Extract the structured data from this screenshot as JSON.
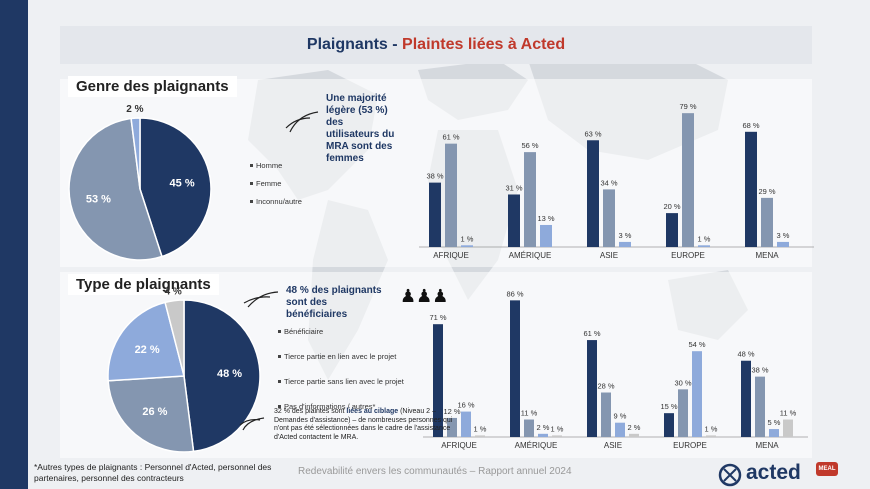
{
  "header": {
    "title_part1": "Plaignants - ",
    "title_part2": "Plaintes liées à Acted"
  },
  "genre": {
    "section_title": "Genre des plaignants",
    "callout": "Une majorité légère (53 %) des utilisateurs du MRA sont des femmes",
    "legend": [
      "Homme",
      "Femme",
      "Inconnu/autre"
    ]
  },
  "type": {
    "section_title": "Type de plaignants",
    "callout": "48 % des plaignants sont des bénéficiaires",
    "legend": [
      "Bénéficiaire",
      "Tierce partie en lien avec le projet",
      "Tierce partie sans lien avec le projet",
      "Pas d'informations / autres*"
    ],
    "note_pre": "32 % des plaintes sont ",
    "note_highlight": "liées au ciblage",
    "note_post": " (Niveau 2 – Demandes d'assistance) – de nombreuses personnes qui n'ont pas été sélectionnées dans le cadre de l'assistance d'Acted contactent le MRA."
  },
  "footnote": "*Autres types de plaignants : Personnel d'Acted, personnel des partenaires, personnel des contracteurs",
  "footer": "Redevabilité envers les communautés – Rapport annuel  2024",
  "brand": {
    "name": "acted",
    "badge": "MEAL"
  },
  "colors": {
    "navy": "#1f3864",
    "slate": "#8496b0",
    "light_blue": "#8eaadb",
    "grey": "#c9c9c9",
    "accent": "#c0392b"
  },
  "chart_data": [
    {
      "type": "pie",
      "slices": [
        {
          "label": "Homme",
          "value": 45,
          "text": "45 %"
        },
        {
          "label": "Femme",
          "value": 53,
          "text": "53 %"
        },
        {
          "label": "Inconnu/autre",
          "value": 2,
          "text": "2 %"
        }
      ]
    },
    {
      "type": "bar",
      "categories": [
        "AFRIQUE",
        "AMÉRIQUE",
        "ASIE",
        "EUROPE",
        "MENA"
      ],
      "series": [
        {
          "name": "Homme",
          "values": [
            38,
            31,
            63,
            20,
            68
          ],
          "labels": [
            "38 %",
            "31 %",
            "63 %",
            "20 %",
            "68 %"
          ]
        },
        {
          "name": "Femme",
          "values": [
            61,
            56,
            34,
            79,
            29
          ],
          "labels": [
            "61 %",
            "56 %",
            "34 %",
            "79 %",
            "29 %"
          ]
        },
        {
          "name": "Inconnu/autre",
          "values": [
            1,
            13,
            3,
            1,
            3
          ],
          "labels": [
            "1 %",
            "13 %",
            "3 %",
            "1 %",
            "3 %"
          ]
        }
      ],
      "ylim": [
        0,
        85
      ]
    },
    {
      "type": "pie",
      "slices": [
        {
          "label": "Bénéficiaire",
          "value": 48,
          "text": "48 %"
        },
        {
          "label": "Tierce partie en lien avec le projet",
          "value": 26,
          "text": "26 %"
        },
        {
          "label": "Tierce partie sans lien avec le projet",
          "value": 22,
          "text": "22 %"
        },
        {
          "label": "Pas d'informations / autres*",
          "value": 4,
          "text": "4 %"
        }
      ]
    },
    {
      "type": "bar",
      "categories": [
        "AFRIQUE",
        "AMÉRIQUE",
        "ASIE",
        "EUROPE",
        "MENA"
      ],
      "series": [
        {
          "name": "Bénéficiaire",
          "values": [
            71,
            86,
            61,
            15,
            48
          ],
          "labels": [
            "71 %",
            "86 %",
            "61 %",
            "15 %",
            "48 %"
          ]
        },
        {
          "name": "Tierce partie en lien avec le projet",
          "values": [
            12,
            11,
            28,
            30,
            38
          ],
          "labels": [
            "12 %",
            "11 %",
            "28 %",
            "30 %",
            "38 %"
          ]
        },
        {
          "name": "Tierce partie sans lien avec le projet",
          "values": [
            16,
            2,
            9,
            54,
            5
          ],
          "labels": [
            "16 %",
            "2 %",
            "9 %",
            "54 %",
            "5 %"
          ]
        },
        {
          "name": "Pas d'informations / autres*",
          "values": [
            1,
            1,
            2,
            1,
            11
          ],
          "labels": [
            "1 %",
            "1 %",
            "2 %",
            "1 %",
            "11 %"
          ]
        }
      ],
      "ylim": [
        0,
        90
      ]
    }
  ]
}
